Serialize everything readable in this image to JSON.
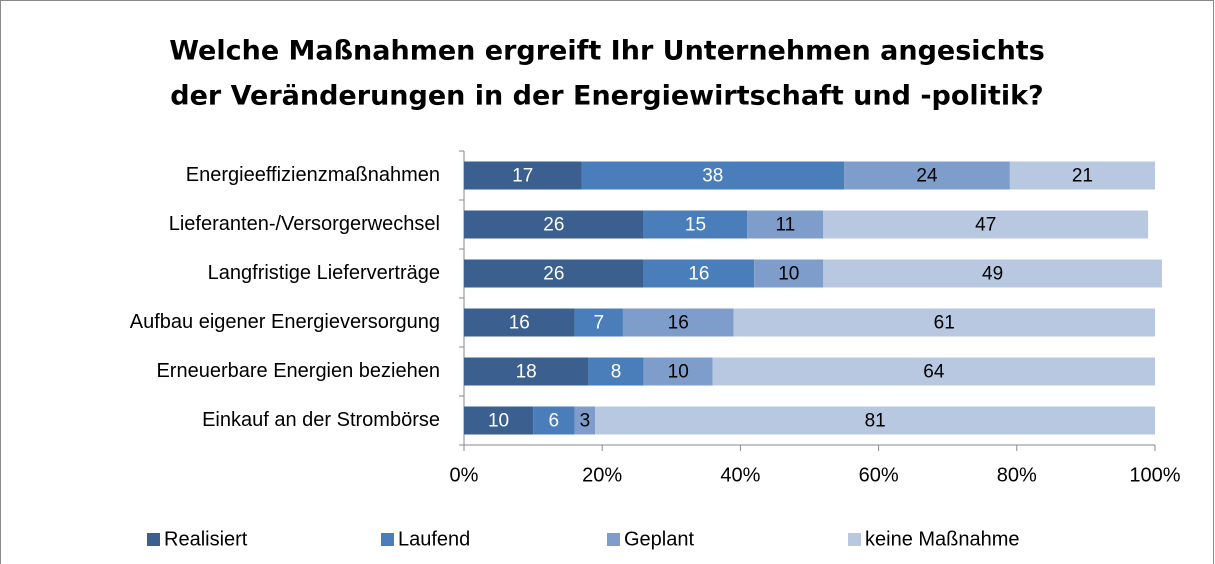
{
  "chart_data": {
    "type": "stacked_barh",
    "title": [
      "Welche Maßnahmen ergreift Ihr Unternehmen angesichts",
      "der Veränderungen in der Energiewirtschaft und -politik?"
    ],
    "categories": [
      "Energieeffizienzmaßnahmen",
      "Lieferanten-/Versorgerwechsel",
      "Langfristige Lieferverträge",
      "Aufbau eigener Energieversorgung",
      "Erneuerbare Energien beziehen",
      "Einkauf an der Strombörse"
    ],
    "series": [
      {
        "name": "Realisiert",
        "color": "#3b5f8f",
        "values": [
          17,
          26,
          26,
          16,
          18,
          10
        ]
      },
      {
        "name": "Laufend",
        "color": "#4a7ebb",
        "values": [
          38,
          15,
          16,
          7,
          8,
          6
        ]
      },
      {
        "name": "Geplant",
        "color": "#7f9dca",
        "values": [
          24,
          11,
          10,
          16,
          10,
          3
        ]
      },
      {
        "name": "keine Maßnahme",
        "color": "#b9c8e1",
        "values": [
          21,
          47,
          49,
          61,
          64,
          81
        ]
      }
    ],
    "xlim": [
      0,
      100
    ],
    "xticks": [
      {
        "value": 0,
        "label": "0%"
      },
      {
        "value": 20,
        "label": "20%"
      },
      {
        "value": 40,
        "label": "40%"
      },
      {
        "value": 60,
        "label": "60%"
      },
      {
        "value": 80,
        "label": "80%"
      },
      {
        "value": 100,
        "label": "100%"
      }
    ],
    "legend": "bottom"
  }
}
